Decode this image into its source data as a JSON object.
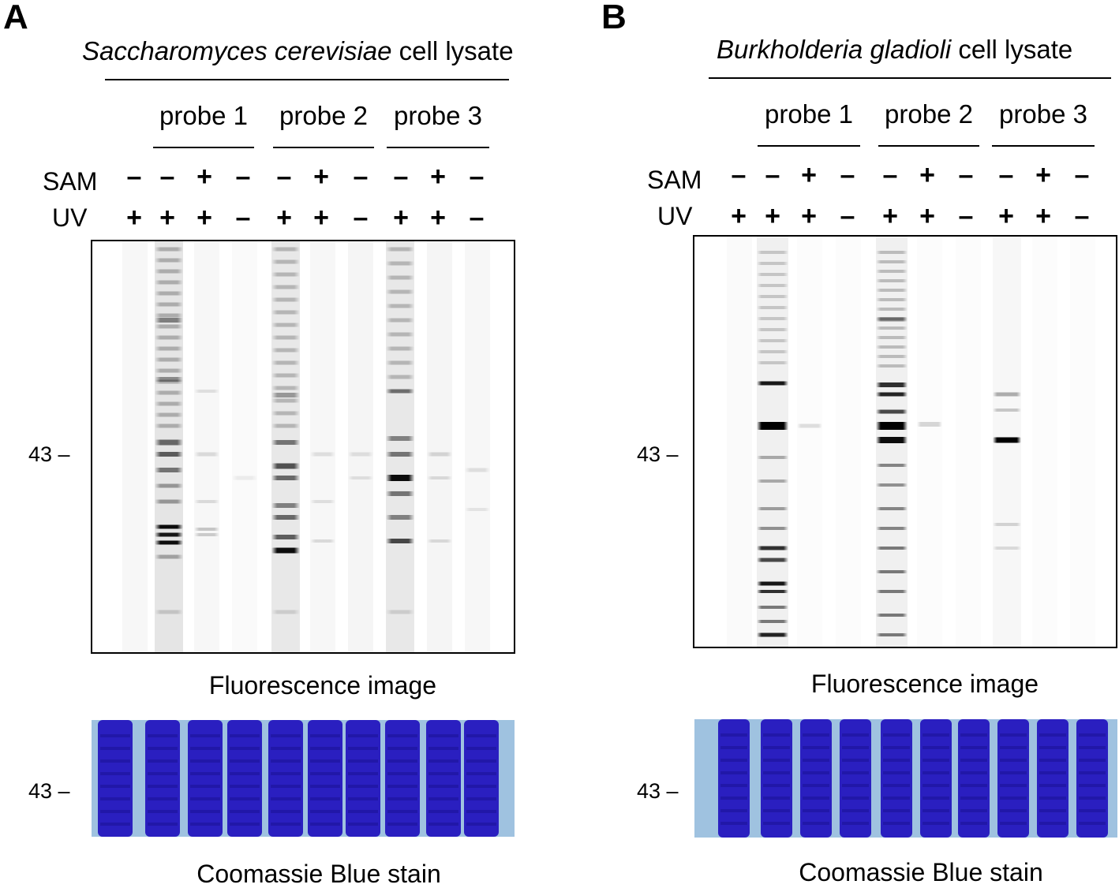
{
  "panels": [
    {
      "label": "A",
      "lysate_species": "Saccharomyces cerevisiae",
      "lysate_suffix": " cell lysate",
      "probes": [
        "probe 1",
        "probe 2",
        "probe 3"
      ],
      "row_labels": {
        "sam": "SAM",
        "uv": "UV"
      },
      "sam": [
        "–",
        "–",
        "+",
        "–",
        "–",
        "+",
        "–",
        "–",
        "+",
        "–"
      ],
      "uv": [
        "+",
        "+",
        "+",
        "–",
        "+",
        "+",
        "–",
        "+",
        "+",
        "–"
      ],
      "marker": "43 –",
      "fluorescence_caption": "Fluorescence image",
      "stain_caption": "Coomassie Blue stain"
    },
    {
      "label": "B",
      "lysate_species": "Burkholderia gladioli",
      "lysate_suffix": " cell lysate",
      "probes": [
        "probe 1",
        "probe 2",
        "probe 3"
      ],
      "row_labels": {
        "sam": "SAM",
        "uv": "UV"
      },
      "sam": [
        "–",
        "–",
        "+",
        "–",
        "–",
        "+",
        "–",
        "–",
        "+",
        "–"
      ],
      "uv": [
        "+",
        "+",
        "+",
        "–",
        "+",
        "+",
        "–",
        "+",
        "+",
        "–"
      ],
      "marker": "43 –",
      "fluorescence_caption": "Fluorescence image",
      "stain_caption": "Coomassie Blue stain"
    }
  ],
  "colors": {
    "stain_lane": "#2a1fc0",
    "stain_background": "#9fc2e0",
    "band": "#000000"
  }
}
